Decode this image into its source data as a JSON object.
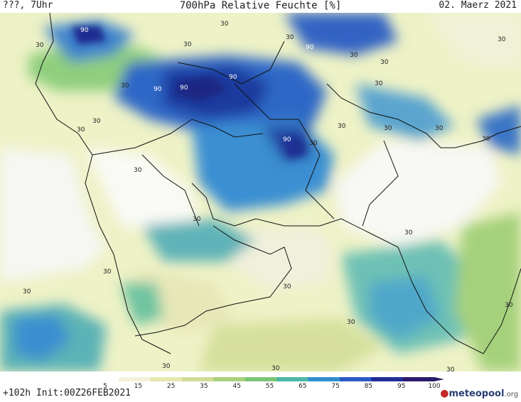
{
  "header": {
    "left": "???, 7Uhr",
    "center": "700hPa Relative Feuchte [%]",
    "right": "02. Maerz 2021"
  },
  "footer": {
    "run_info": "+102h Init:00Z26FEB2021",
    "logo_main": "meteopool",
    "logo_suffix": ".org"
  },
  "colorbar": {
    "ticks": [
      "5",
      "15",
      "25",
      "35",
      "45",
      "55",
      "65",
      "75",
      "85",
      "95",
      "100"
    ],
    "colors": [
      "#ffffff",
      "#f4f1d8",
      "#e7e7b0",
      "#d0dc94",
      "#abd07c",
      "#7cc576",
      "#4db6a7",
      "#2f8fd0",
      "#2a5bc5",
      "#1e2e98",
      "#2a1a6a"
    ]
  },
  "map_labels": {
    "contour_30": "30",
    "contour_90": "90"
  }
}
